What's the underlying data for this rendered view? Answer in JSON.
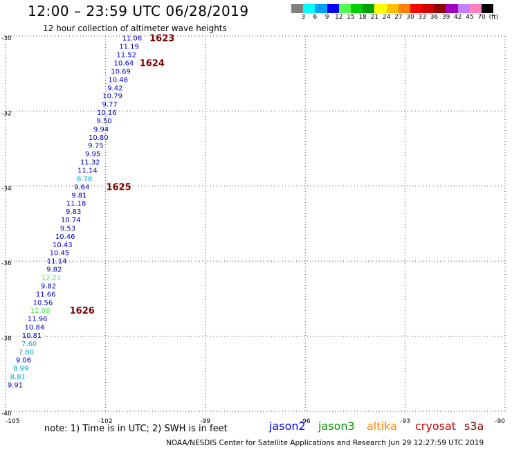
{
  "header": {
    "title": "12:00 – 23:59 UTC 06/28/2019",
    "subtitle": "12 hour collection of altimeter wave heights"
  },
  "legend": {
    "swatch_colors": [
      "#808080",
      "#00ffff",
      "#00a0ff",
      "#0000ff",
      "#50ff50",
      "#00d000",
      "#00a000",
      "#ffff00",
      "#ffc000",
      "#ff8000",
      "#ff0000",
      "#d00000",
      "#900000",
      "#a000c0",
      "#c080ff",
      "#ff80c0",
      "#000000"
    ],
    "tick_labels": [
      "3",
      "6",
      "9",
      "12",
      "15",
      "18",
      "21",
      "24",
      "27",
      "30",
      "33",
      "36",
      "39",
      "42",
      "45",
      "70",
      "(ft)"
    ]
  },
  "satellites": [
    {
      "name": "jason2",
      "color": "#0000ff"
    },
    {
      "name": "jason3",
      "color": "#009000"
    },
    {
      "name": "altika",
      "color": "#ff8000"
    },
    {
      "name": "cryosat",
      "color": "#d00000"
    },
    {
      "name": "s3a",
      "color": "#900000"
    }
  ],
  "footer": {
    "note": "note: 1) Time is in UTC; 2) SWH is in feet",
    "credit": "NOAA/NESDIS Center for Satellite Applications and Research   Jun 29 12:27:59 UTC 2019"
  },
  "chart_data": {
    "type": "scatter",
    "title": "12:00 – 23:59 UTC 06/28/2019",
    "subtitle": "12 hour collection of altimeter wave heights",
    "units": "ft",
    "xlim": [
      -105,
      -90
    ],
    "ylim": [
      -40,
      -30
    ],
    "xticks": [
      -105,
      -102,
      -99,
      -96,
      -93,
      -90
    ],
    "xtick_labels": [
      "-105",
      "-102",
      "-99",
      "-96",
      "-93",
      "-90"
    ],
    "yticks": [
      -30,
      -32,
      -34,
      -36,
      -38,
      -40
    ],
    "ytick_labels": [
      "-30",
      "-32",
      "-34",
      "-36",
      "-38",
      "-40"
    ],
    "gridlines": "dotted",
    "series": [
      {
        "name": "jason2",
        "color": "#0000c0",
        "points": [
          {
            "x": -101.2,
            "y": -30.05,
            "value": "11.06"
          },
          {
            "x": -101.29,
            "y": -30.27,
            "value": "11.19"
          },
          {
            "x": -101.37,
            "y": -30.49,
            "value": "11.52"
          },
          {
            "x": -101.45,
            "y": -30.71,
            "value": "10.64"
          },
          {
            "x": -101.54,
            "y": -30.93,
            "value": "10.69"
          },
          {
            "x": -101.62,
            "y": -31.15,
            "value": "10.48"
          },
          {
            "x": -101.71,
            "y": -31.37,
            "value": "9.42"
          },
          {
            "x": -101.79,
            "y": -31.59,
            "value": "10.79"
          },
          {
            "x": -101.87,
            "y": -31.81,
            "value": "9.77"
          },
          {
            "x": -101.96,
            "y": -32.03,
            "value": "10.16"
          },
          {
            "x": -102.04,
            "y": -32.25,
            "value": "9.50"
          },
          {
            "x": -102.13,
            "y": -32.47,
            "value": "9.94"
          },
          {
            "x": -102.21,
            "y": -32.69,
            "value": "10.80"
          },
          {
            "x": -102.29,
            "y": -32.91,
            "value": "9.75"
          },
          {
            "x": -102.38,
            "y": -33.13,
            "value": "9.95"
          },
          {
            "x": -102.46,
            "y": -33.35,
            "value": "11.32"
          },
          {
            "x": -102.54,
            "y": -33.57,
            "value": "11.14"
          },
          {
            "x": -102.63,
            "y": -33.79,
            "value": "8.78",
            "color": "#00a8c0"
          },
          {
            "x": -102.71,
            "y": -34.01,
            "value": "9.64"
          },
          {
            "x": -102.79,
            "y": -34.23,
            "value": "9.81"
          },
          {
            "x": -102.88,
            "y": -34.45,
            "value": "11.18"
          },
          {
            "x": -102.96,
            "y": -34.67,
            "value": "9.83"
          },
          {
            "x": -103.04,
            "y": -34.89,
            "value": "10.74"
          },
          {
            "x": -103.13,
            "y": -35.11,
            "value": "9.53"
          },
          {
            "x": -103.21,
            "y": -35.33,
            "value": "10.46"
          },
          {
            "x": -103.29,
            "y": -35.55,
            "value": "10.43"
          },
          {
            "x": -103.38,
            "y": -35.77,
            "value": "10.45"
          },
          {
            "x": -103.46,
            "y": -35.99,
            "value": "11.14"
          },
          {
            "x": -103.54,
            "y": -36.21,
            "value": "9.82"
          },
          {
            "x": -103.63,
            "y": -36.43,
            "value": "12.21",
            "color": "#50e050"
          },
          {
            "x": -103.71,
            "y": -36.65,
            "value": "9.82"
          },
          {
            "x": -103.79,
            "y": -36.87,
            "value": "11.66"
          },
          {
            "x": -103.88,
            "y": -37.09,
            "value": "10.56"
          },
          {
            "x": -103.96,
            "y": -37.31,
            "value": "12.08",
            "color": "#50e050"
          },
          {
            "x": -104.04,
            "y": -37.53,
            "value": "11.96"
          },
          {
            "x": -104.13,
            "y": -37.75,
            "value": "10.84"
          },
          {
            "x": -104.21,
            "y": -37.97,
            "value": "10.81"
          },
          {
            "x": -104.29,
            "y": -38.19,
            "value": "7.60",
            "color": "#00a8c0"
          },
          {
            "x": -104.38,
            "y": -38.41,
            "value": "7.80",
            "color": "#00a8c0"
          },
          {
            "x": -104.46,
            "y": -38.63,
            "value": "9.06"
          },
          {
            "x": -104.54,
            "y": -38.85,
            "value": "8.99",
            "color": "#00a8c0"
          },
          {
            "x": -104.63,
            "y": -39.07,
            "value": "8.81",
            "color": "#00a8c0"
          },
          {
            "x": -104.71,
            "y": -39.29,
            "value": "9.91"
          }
        ]
      }
    ],
    "time_marks": [
      {
        "x": -100.3,
        "y": -30.05,
        "label": "1623"
      },
      {
        "x": -100.6,
        "y": -30.71,
        "label": "1624"
      },
      {
        "x": -101.6,
        "y": -34.01,
        "label": "1625"
      },
      {
        "x": -102.7,
        "y": -37.31,
        "label": "1626"
      }
    ]
  }
}
